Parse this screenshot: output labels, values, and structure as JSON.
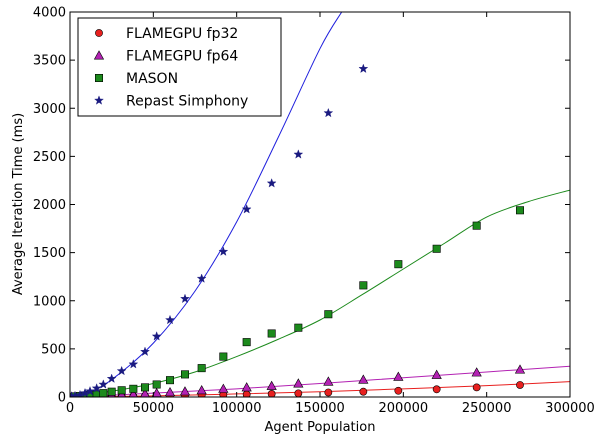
{
  "chart_data": {
    "type": "scatter",
    "xlabel": "Agent Population",
    "ylabel": "Average Iteration Time (ms)",
    "xlim": [
      0,
      300000
    ],
    "ylim": [
      0,
      4000
    ],
    "x_ticks": [
      0,
      50000,
      100000,
      150000,
      200000,
      250000,
      300000
    ],
    "y_ticks": [
      0,
      500,
      1000,
      1500,
      2000,
      2500,
      3000,
      3500,
      4000
    ],
    "x_tick_labels": [
      "0",
      "50000",
      "100000",
      "150000",
      "200000",
      "250000",
      "300000"
    ],
    "y_tick_labels": [
      "0",
      "500",
      "1000",
      "1500",
      "2000",
      "2500",
      "3000",
      "3500",
      "4000"
    ],
    "grid": false,
    "legend_position": "top-left",
    "series": [
      {
        "name": "FLAMEGPU fp32",
        "color": "#e8201f",
        "marker": "circle",
        "fit_curve": [
          [
            0,
            0
          ],
          [
            50000,
            12
          ],
          [
            100000,
            32
          ],
          [
            150000,
            55
          ],
          [
            200000,
            85
          ],
          [
            250000,
            118
          ],
          [
            300000,
            160
          ]
        ],
        "points": [
          [
            1000,
            2
          ],
          [
            3000,
            3
          ],
          [
            6000,
            3
          ],
          [
            9000,
            4
          ],
          [
            12000,
            4
          ],
          [
            16000,
            5
          ],
          [
            20000,
            6
          ],
          [
            25000,
            7
          ],
          [
            31000,
            8
          ],
          [
            38000,
            10
          ],
          [
            45000,
            11
          ],
          [
            52000,
            12
          ],
          [
            60000,
            14
          ],
          [
            69000,
            17
          ],
          [
            79000,
            20
          ],
          [
            92000,
            23
          ],
          [
            106000,
            27
          ],
          [
            121000,
            32
          ],
          [
            137000,
            38
          ],
          [
            155000,
            47
          ],
          [
            176000,
            55
          ],
          [
            197000,
            65
          ],
          [
            220000,
            80
          ],
          [
            244000,
            100
          ],
          [
            270000,
            125
          ]
        ]
      },
      {
        "name": "FLAMEGPU fp64",
        "color": "#b322b3",
        "marker": "triangle",
        "fit_curve": [
          [
            0,
            0
          ],
          [
            50000,
            40
          ],
          [
            100000,
            85
          ],
          [
            150000,
            140
          ],
          [
            200000,
            200
          ],
          [
            250000,
            260
          ],
          [
            300000,
            320
          ]
        ],
        "points": [
          [
            1000,
            3
          ],
          [
            3000,
            4
          ],
          [
            6000,
            5
          ],
          [
            9000,
            7
          ],
          [
            12000,
            9
          ],
          [
            16000,
            12
          ],
          [
            20000,
            15
          ],
          [
            25000,
            19
          ],
          [
            31000,
            24
          ],
          [
            38000,
            29
          ],
          [
            45000,
            35
          ],
          [
            52000,
            41
          ],
          [
            60000,
            50
          ],
          [
            69000,
            58
          ],
          [
            79000,
            70
          ],
          [
            92000,
            85
          ],
          [
            106000,
            100
          ],
          [
            121000,
            115
          ],
          [
            137000,
            140
          ],
          [
            155000,
            160
          ],
          [
            176000,
            180
          ],
          [
            197000,
            210
          ],
          [
            220000,
            230
          ],
          [
            244000,
            255
          ],
          [
            270000,
            285
          ]
        ]
      },
      {
        "name": "MASON",
        "color": "#1c8a1c",
        "marker": "square",
        "fit_curve": [
          [
            0,
            0
          ],
          [
            25000,
            60
          ],
          [
            50000,
            140
          ],
          [
            75000,
            260
          ],
          [
            100000,
            420
          ],
          [
            125000,
            600
          ],
          [
            150000,
            800
          ],
          [
            175000,
            1060
          ],
          [
            200000,
            1330
          ],
          [
            225000,
            1600
          ],
          [
            250000,
            1870
          ],
          [
            275000,
            2030
          ],
          [
            300000,
            2150
          ]
        ],
        "points": [
          [
            1000,
            3
          ],
          [
            3000,
            6
          ],
          [
            6000,
            10
          ],
          [
            9000,
            15
          ],
          [
            12000,
            20
          ],
          [
            16000,
            25
          ],
          [
            20000,
            40
          ],
          [
            25000,
            55
          ],
          [
            31000,
            70
          ],
          [
            38000,
            85
          ],
          [
            45000,
            100
          ],
          [
            52000,
            130
          ],
          [
            60000,
            175
          ],
          [
            69000,
            235
          ],
          [
            79000,
            300
          ],
          [
            92000,
            420
          ],
          [
            106000,
            570
          ],
          [
            121000,
            660
          ],
          [
            137000,
            720
          ],
          [
            155000,
            860
          ],
          [
            176000,
            1160
          ],
          [
            197000,
            1380
          ],
          [
            220000,
            1540
          ],
          [
            244000,
            1780
          ],
          [
            270000,
            1940
          ]
        ]
      },
      {
        "name": "Repast Simphony",
        "color": "#1a1a80",
        "line_color": "#1f1fdd",
        "marker": "star",
        "fit_curve": [
          [
            0,
            0
          ],
          [
            10000,
            40
          ],
          [
            25000,
            180
          ],
          [
            50000,
            560
          ],
          [
            75000,
            1100
          ],
          [
            100000,
            1820
          ],
          [
            125000,
            2700
          ],
          [
            150000,
            3620
          ],
          [
            163000,
            4000
          ]
        ],
        "points": [
          [
            1000,
            5
          ],
          [
            3000,
            10
          ],
          [
            6000,
            20
          ],
          [
            9000,
            40
          ],
          [
            12000,
            60
          ],
          [
            16000,
            90
          ],
          [
            20000,
            130
          ],
          [
            25000,
            190
          ],
          [
            31000,
            270
          ],
          [
            38000,
            340
          ],
          [
            45000,
            470
          ],
          [
            52000,
            630
          ],
          [
            60000,
            800
          ],
          [
            69000,
            1020
          ],
          [
            79000,
            1230
          ],
          [
            92000,
            1510
          ],
          [
            106000,
            1950
          ],
          [
            121000,
            2220
          ],
          [
            137000,
            2520
          ],
          [
            155000,
            2950
          ],
          [
            176000,
            3410
          ]
        ]
      }
    ]
  }
}
